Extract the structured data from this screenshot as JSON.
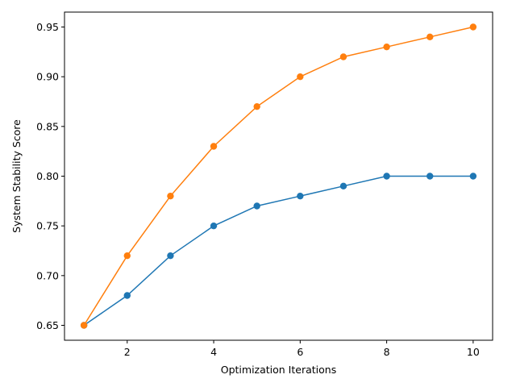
{
  "chart_data": {
    "type": "line",
    "title": "",
    "xlabel": "Optimization Iterations",
    "ylabel": "System Stability Score",
    "xlim": [
      0.55,
      10.45
    ],
    "ylim": [
      0.635,
      0.965
    ],
    "x_ticks": [
      2,
      4,
      6,
      8,
      10
    ],
    "y_ticks": [
      0.65,
      0.7,
      0.75,
      0.8,
      0.85,
      0.9,
      0.95
    ],
    "grid": false,
    "legend": "none",
    "x": [
      1,
      2,
      3,
      4,
      5,
      6,
      7,
      8,
      9,
      10
    ],
    "series": [
      {
        "color": "#1f77b4",
        "marker": "circle",
        "values": [
          0.65,
          0.68,
          0.72,
          0.75,
          0.77,
          0.78,
          0.79,
          0.8,
          0.8,
          0.8
        ]
      },
      {
        "color": "#ff7f0e",
        "marker": "circle",
        "values": [
          0.65,
          0.72,
          0.78,
          0.83,
          0.87,
          0.9,
          0.92,
          0.93,
          0.94,
          0.95
        ]
      }
    ]
  }
}
